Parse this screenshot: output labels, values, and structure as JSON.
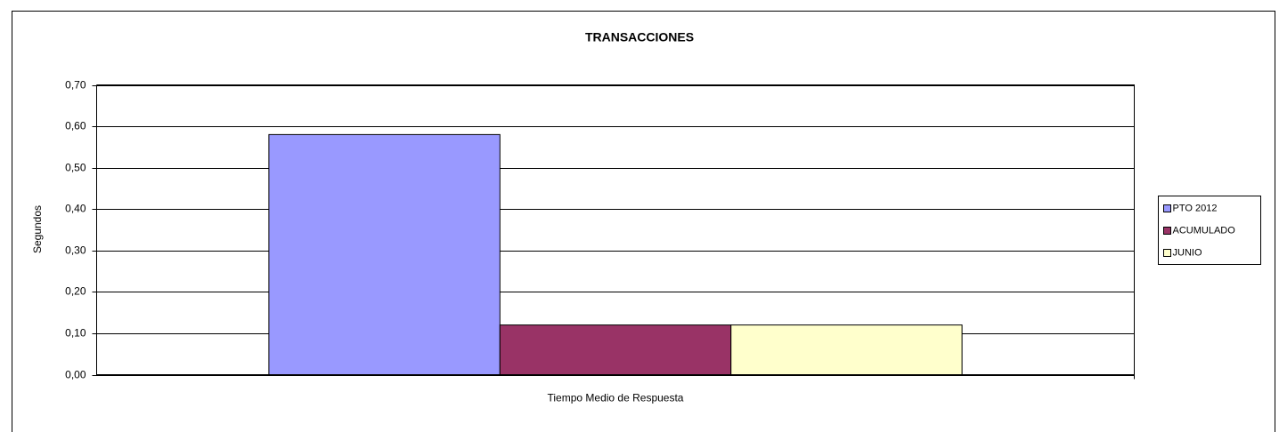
{
  "chart_data": {
    "type": "bar",
    "title": "TRANSACCIONES",
    "y_label": "Segundos",
    "categories": [
      "Tiempo Medio de Respuesta"
    ],
    "series": [
      {
        "name": "PTO 2012",
        "color": "#9999ff",
        "values": [
          0.58
        ]
      },
      {
        "name": "ACUMULADO",
        "color": "#993366",
        "values": [
          0.12
        ]
      },
      {
        "name": "JUNIO",
        "color": "#ffffcc",
        "values": [
          0.12
        ]
      }
    ],
    "ylim": [
      0,
      0.7
    ],
    "yticks": [
      {
        "value": 0,
        "label": "0,00"
      },
      {
        "value": 0.1,
        "label": "0,10"
      },
      {
        "value": 0.2,
        "label": "0,20"
      },
      {
        "value": 0.3,
        "label": "0,30"
      },
      {
        "value": 0.4,
        "label": "0,40"
      },
      {
        "value": 0.5,
        "label": "0,50"
      },
      {
        "value": 0.6,
        "label": "0,60"
      },
      {
        "value": 0.7,
        "label": "0,70"
      }
    ],
    "grid": true,
    "legend": "right"
  }
}
